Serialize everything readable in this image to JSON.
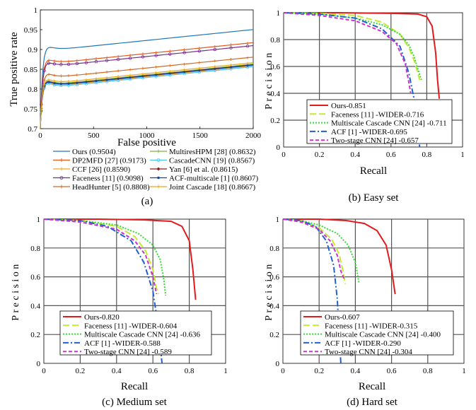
{
  "chart_data": [
    {
      "id": "a",
      "type": "line",
      "caption": "(a)",
      "title": "",
      "xlabel": "False positive",
      "ylabel": "True positive rate",
      "xlim": [
        0,
        2000
      ],
      "ylim": [
        0.7,
        1.0
      ],
      "xticks": [
        0,
        500,
        1000,
        1500,
        2000
      ],
      "yticks": [
        0.7,
        0.75,
        0.8,
        0.85,
        0.9,
        0.95,
        1
      ],
      "ytick_labels": [
        "0.7",
        "0.75",
        "0.8",
        "0.85",
        "0.9",
        "0.95",
        "1"
      ],
      "grid": false,
      "legend_position": "below",
      "series": [
        {
          "name": "Ours (0.9504)",
          "final": 0.9504,
          "color": "#1f77b4",
          "marker": "none"
        },
        {
          "name": "DP2MFD [27] (0.9173)",
          "final": 0.9173,
          "color": "#e05a1a",
          "marker": "plus"
        },
        {
          "name": "CCF [26] (0.8590)",
          "final": 0.859,
          "color": "#f5a623",
          "marker": "plus"
        },
        {
          "name": "Faceness [11] (0.9098)",
          "final": 0.9098,
          "color": "#7b2d8e",
          "marker": "circle"
        },
        {
          "name": "HeadHunter [5] (0.8808)",
          "final": 0.8808,
          "color": "#d2691e",
          "marker": "plus"
        },
        {
          "name": "MultiresHPM [28] (0.8632)",
          "final": 0.8632,
          "color": "#7cb342",
          "marker": "plus"
        },
        {
          "name": "CascadeCNN [19] (0.8567)",
          "final": 0.8567,
          "color": "#4fc3f7",
          "marker": "circle"
        },
        {
          "name": "Yan [6] et al. (0.8615)",
          "final": 0.8615,
          "color": "#8b1a1a",
          "marker": "diamond"
        },
        {
          "name": "ACF-multiscale [1] (0.8607)",
          "final": 0.8607,
          "color": "#0d47a1",
          "marker": "dot"
        },
        {
          "name": "Joint Cascade [18] (0.8667)",
          "final": 0.8667,
          "color": "#e6a817",
          "marker": "plus"
        }
      ]
    },
    {
      "id": "b",
      "type": "line",
      "caption": "(b) Easy set",
      "xlabel": "Recall",
      "ylabel": "Precision",
      "xlim": [
        0,
        1
      ],
      "ylim": [
        0,
        1
      ],
      "xticks": [
        0,
        0.2,
        0.4,
        0.6,
        0.8,
        1
      ],
      "xtick_labels": [
        "0",
        "0.2",
        "0.4",
        "0.6",
        "0.8",
        "1"
      ],
      "yticks": [
        0,
        0.2,
        0.4,
        0.6,
        0.8,
        1
      ],
      "ytick_labels": [
        "0",
        "0.2",
        "0.4",
        "0.6",
        "0.8",
        "1"
      ],
      "grid": true,
      "legend_position": "bottom-right",
      "series": [
        {
          "name": "Ours-0.851",
          "color": "#e41a1c",
          "dash": "solid",
          "x": [
            0,
            0.3,
            0.6,
            0.75,
            0.8,
            0.83,
            0.85,
            0.86,
            0.87
          ],
          "y": [
            1,
            1,
            0.995,
            0.99,
            0.97,
            0.9,
            0.7,
            0.5,
            0.36
          ]
        },
        {
          "name": "Faceness [11] -WIDER-0.716",
          "color": "#c5e830",
          "dash": "longdash",
          "x": [
            0,
            0.2,
            0.4,
            0.55,
            0.65,
            0.7,
            0.73,
            0.75,
            0.76
          ],
          "y": [
            1,
            0.995,
            0.98,
            0.93,
            0.84,
            0.74,
            0.64,
            0.55,
            0.5
          ]
        },
        {
          "name": "Multiscale Cascade CNN [24] -0.711",
          "color": "#33dd33",
          "dash": "dotted",
          "x": [
            0,
            0.2,
            0.4,
            0.55,
            0.65,
            0.7,
            0.73,
            0.75,
            0.77
          ],
          "y": [
            1,
            0.99,
            0.96,
            0.91,
            0.84,
            0.76,
            0.67,
            0.58,
            0.5
          ]
        },
        {
          "name": "ACF [1] -WIDER-0.695",
          "color": "#1f5fd6",
          "dash": "dashdot",
          "x": [
            0,
            0.2,
            0.4,
            0.55,
            0.65,
            0.7,
            0.73,
            0.75,
            0.76
          ],
          "y": [
            1,
            0.99,
            0.96,
            0.88,
            0.75,
            0.55,
            0.35,
            0.15,
            0.0
          ]
        },
        {
          "name": "Two-stage CNN [24] -0.657",
          "color": "#cc33cc",
          "dash": "dashed",
          "x": [
            0,
            0.2,
            0.4,
            0.55,
            0.63,
            0.68,
            0.7,
            0.71
          ],
          "y": [
            1,
            0.98,
            0.94,
            0.86,
            0.77,
            0.62,
            0.48,
            0.4
          ]
        }
      ]
    },
    {
      "id": "c",
      "type": "line",
      "caption": "(c) Medium set",
      "xlabel": "Recall",
      "ylabel": "Precision",
      "xlim": [
        0,
        1
      ],
      "ylim": [
        0,
        1
      ],
      "xticks": [
        0,
        0.2,
        0.4,
        0.6,
        0.8,
        1
      ],
      "xtick_labels": [
        "0",
        "0.2",
        "0.4",
        "0.6",
        "0.8",
        "1"
      ],
      "yticks": [
        0,
        0.2,
        0.4,
        0.6,
        0.8,
        1
      ],
      "ytick_labels": [
        "0",
        "0.2",
        "0.4",
        "0.6",
        "0.8",
        "1"
      ],
      "grid": true,
      "legend_position": "bottom-right",
      "series": [
        {
          "name": "Ours-0.820",
          "color": "#e41a1c",
          "dash": "solid",
          "x": [
            0,
            0.3,
            0.55,
            0.7,
            0.76,
            0.8,
            0.82,
            0.835
          ],
          "y": [
            1,
            1,
            0.995,
            0.985,
            0.95,
            0.85,
            0.65,
            0.44
          ]
        },
        {
          "name": "Faceness [11] -WIDER-0.604",
          "color": "#c5e830",
          "dash": "longdash",
          "x": [
            0,
            0.2,
            0.4,
            0.5,
            0.56,
            0.6,
            0.62,
            0.63
          ],
          "y": [
            1,
            0.99,
            0.95,
            0.88,
            0.78,
            0.65,
            0.52,
            0.48
          ]
        },
        {
          "name": "Multiscale Cascade CNN [24] -0.636",
          "color": "#33dd33",
          "dash": "dotted",
          "x": [
            0,
            0.2,
            0.4,
            0.52,
            0.6,
            0.64,
            0.66,
            0.67
          ],
          "y": [
            1,
            0.99,
            0.96,
            0.9,
            0.82,
            0.72,
            0.58,
            0.47
          ]
        },
        {
          "name": "ACF [1] -WIDER-0.588",
          "color": "#1f5fd6",
          "dash": "dashdot",
          "x": [
            0,
            0.2,
            0.35,
            0.48,
            0.55,
            0.6,
            0.63,
            0.65
          ],
          "y": [
            1,
            0.99,
            0.95,
            0.85,
            0.7,
            0.5,
            0.25,
            0.0
          ]
        },
        {
          "name": "Two-stage CNN [24] -0.589",
          "color": "#cc33cc",
          "dash": "dashed",
          "x": [
            0,
            0.2,
            0.4,
            0.5,
            0.56,
            0.6,
            0.62
          ],
          "y": [
            1,
            0.98,
            0.93,
            0.85,
            0.75,
            0.6,
            0.48
          ]
        }
      ]
    },
    {
      "id": "d",
      "type": "line",
      "caption": "(d) Hard set",
      "xlabel": "Recall",
      "ylabel": "Precision",
      "xlim": [
        0,
        1
      ],
      "ylim": [
        0,
        1
      ],
      "xticks": [
        0,
        0.2,
        0.4,
        0.6,
        0.8,
        1
      ],
      "xtick_labels": [
        "0",
        "0.2",
        "0.4",
        "0.6",
        "0.8",
        "1"
      ],
      "yticks": [
        0,
        0.2,
        0.4,
        0.6,
        0.8,
        1
      ],
      "ytick_labels": [
        "0",
        "0.2",
        "0.4",
        "0.6",
        "0.8",
        "1"
      ],
      "grid": true,
      "legend_position": "bottom-right",
      "series": [
        {
          "name": "Ours-0.607",
          "color": "#e41a1c",
          "dash": "solid",
          "x": [
            0,
            0.2,
            0.35,
            0.45,
            0.52,
            0.57,
            0.6,
            0.62
          ],
          "y": [
            1,
            1,
            0.99,
            0.97,
            0.92,
            0.82,
            0.65,
            0.48
          ]
        },
        {
          "name": "Faceness [11] -WIDER-0.315",
          "color": "#c5e830",
          "dash": "longdash",
          "x": [
            0,
            0.1,
            0.2,
            0.27,
            0.31,
            0.33,
            0.345
          ],
          "y": [
            1,
            0.99,
            0.94,
            0.86,
            0.76,
            0.65,
            0.55
          ]
        },
        {
          "name": "Multiscale Cascade CNN [24] -0.400",
          "color": "#33dd33",
          "dash": "dotted",
          "x": [
            0,
            0.1,
            0.2,
            0.3,
            0.36,
            0.4,
            0.42
          ],
          "y": [
            1,
            0.99,
            0.96,
            0.9,
            0.82,
            0.7,
            0.56
          ]
        },
        {
          "name": "ACF [1] -WIDER-0.290",
          "color": "#1f5fd6",
          "dash": "dashdot",
          "x": [
            0,
            0.1,
            0.18,
            0.24,
            0.28,
            0.3,
            0.32
          ],
          "y": [
            1,
            0.99,
            0.95,
            0.85,
            0.68,
            0.45,
            0.0
          ]
        },
        {
          "name": "Two-stage CNN [24] -0.304",
          "color": "#cc33cc",
          "dash": "dashed",
          "x": [
            0,
            0.1,
            0.2,
            0.26,
            0.3,
            0.32,
            0.34
          ],
          "y": [
            1,
            0.98,
            0.93,
            0.85,
            0.75,
            0.64,
            0.58
          ]
        }
      ]
    }
  ]
}
